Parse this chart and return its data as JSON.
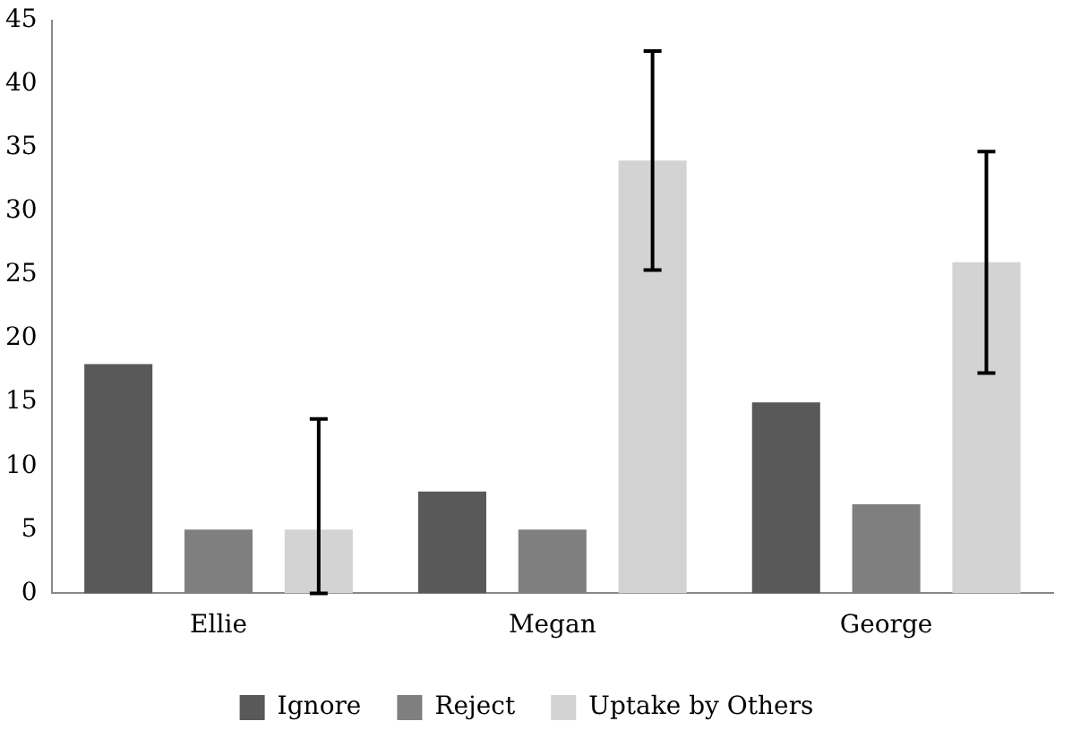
{
  "chart_data": {
    "type": "bar",
    "categories": [
      "Ellie",
      "Megan",
      "George"
    ],
    "series": [
      {
        "name": "Ignore",
        "color": "#595959",
        "values": [
          18,
          8,
          15
        ]
      },
      {
        "name": "Reject",
        "color": "#7f7f7f",
        "values": [
          5,
          5,
          7
        ]
      },
      {
        "name": "Uptake by Others",
        "color": "#d3d3d3",
        "values": [
          5,
          34,
          26
        ],
        "errors": [
          [
            0,
            13.7
          ],
          8.6,
          8.7
        ]
      }
    ],
    "ylim": [
      0,
      45
    ],
    "yticks": [
      0,
      5,
      10,
      15,
      20,
      25,
      30,
      35,
      40,
      45
    ],
    "grid": false,
    "legend": "bottom"
  }
}
